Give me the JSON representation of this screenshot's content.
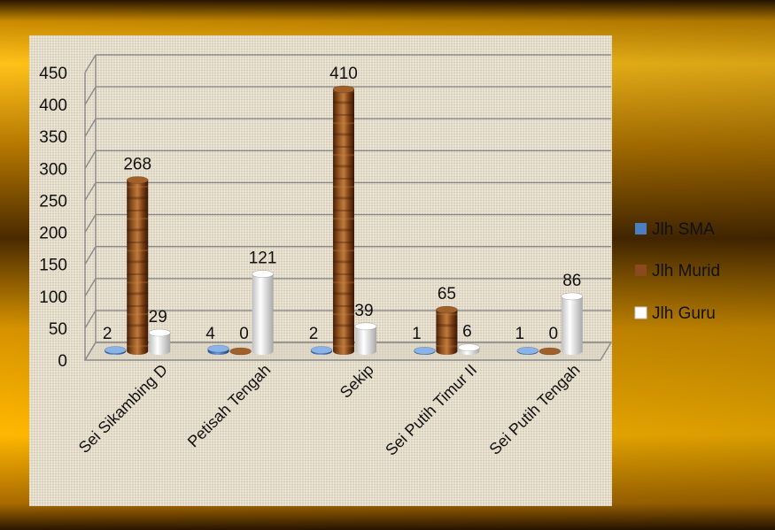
{
  "chart_data": {
    "type": "bar",
    "title": "",
    "xlabel": "",
    "ylabel": "",
    "categories": [
      "Sei Sikambing D",
      "Petisah Tengah",
      "Sekip",
      "Sei Putih Timur II",
      "Sei Putih Tengah"
    ],
    "series": [
      {
        "name": "Jlh SMA",
        "values": [
          2,
          4,
          2,
          1,
          1
        ],
        "color": "#4a7fc1"
      },
      {
        "name": "Jlh Murid",
        "values": [
          268,
          0,
          410,
          65,
          0
        ],
        "color": "#8a4a1e"
      },
      {
        "name": "Jlh Guru",
        "values": [
          29,
          121,
          39,
          6,
          86
        ],
        "color": "#eeeeee"
      }
    ],
    "yticks": [
      "0",
      "50",
      "100",
      "150",
      "200",
      "250",
      "300",
      "350",
      "400",
      "450"
    ],
    "ylim": [
      0,
      450
    ],
    "grid": true,
    "legend_position": "right",
    "style": "3d-cylinder"
  },
  "colors": {
    "frame_gold": "#e8a400",
    "frame_dark": "#3a2000",
    "plot_bg": "#e6dece"
  }
}
